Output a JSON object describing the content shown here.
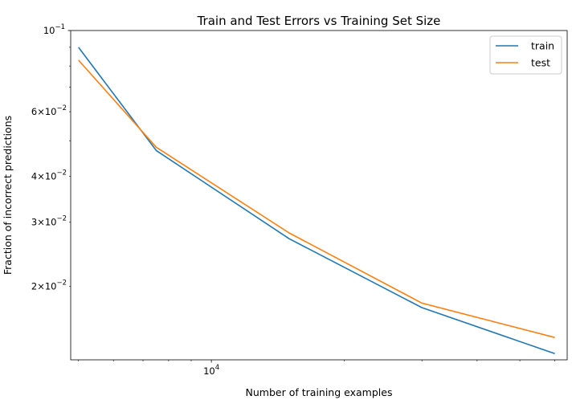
{
  "chart_data": {
    "type": "line",
    "title": "Train and Test Errors vs Training Set Size",
    "xlabel": "Number of training examples",
    "ylabel": "Fraction of incorrect predictions",
    "x_scale": "log",
    "y_scale": "log",
    "xlim": [
      4800,
      64000
    ],
    "ylim": [
      0.0126,
      0.1
    ],
    "x_major_ticks": [
      {
        "value": 10000,
        "label": "10^4"
      }
    ],
    "x_minor_ticks": [
      5000,
      6000,
      7000,
      8000,
      9000,
      20000,
      30000,
      40000,
      50000,
      60000
    ],
    "y_major_ticks": [
      {
        "value": 0.1,
        "label": "10^-1"
      }
    ],
    "y_minor_ticks": [
      {
        "value": 0.02,
        "label": "2×10^-2"
      },
      {
        "value": 0.03,
        "label": "3×10^-2"
      },
      {
        "value": 0.04,
        "label": "4×10^-2"
      },
      {
        "value": 0.06,
        "label": "6×10^-2"
      },
      {
        "value": 0.05,
        "label": ""
      },
      {
        "value": 0.07,
        "label": ""
      },
      {
        "value": 0.08,
        "label": ""
      },
      {
        "value": 0.09,
        "label": ""
      }
    ],
    "x": [
      5000,
      7500,
      15000,
      30000,
      60000
    ],
    "series": [
      {
        "name": "train",
        "color": "#1f77b4",
        "values": [
          0.09,
          0.047,
          0.027,
          0.0175,
          0.0131
        ]
      },
      {
        "name": "test",
        "color": "#ff7f0e",
        "values": [
          0.083,
          0.048,
          0.028,
          0.018,
          0.0145
        ]
      }
    ],
    "grid": false,
    "legend_position": "upper-right"
  }
}
